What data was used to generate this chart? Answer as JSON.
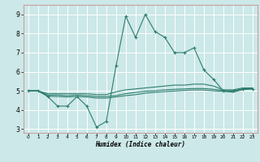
{
  "title": "",
  "xlabel": "Humidex (Indice chaleur)",
  "bg_color": "#cce8e8",
  "plot_bg_color": "#cce8e8",
  "grid_color": "#ffffff",
  "line_color": "#2d7d6e",
  "border_color": "#c8a0a0",
  "xlim": [
    -0.5,
    23.5
  ],
  "ylim": [
    2.8,
    9.5
  ],
  "xticks": [
    0,
    1,
    2,
    3,
    4,
    5,
    6,
    7,
    8,
    9,
    10,
    11,
    12,
    13,
    14,
    15,
    16,
    17,
    18,
    19,
    20,
    21,
    22,
    23
  ],
  "yticks": [
    3,
    4,
    5,
    6,
    7,
    8,
    9
  ],
  "series": [
    {
      "x": [
        0,
        1,
        2,
        3,
        4,
        5,
        6,
        7,
        8,
        9,
        10,
        11,
        12,
        13,
        14,
        15,
        16,
        17,
        18,
        19,
        20,
        21,
        22,
        23
      ],
      "y": [
        5.0,
        5.0,
        4.7,
        4.2,
        4.2,
        4.7,
        4.2,
        3.1,
        3.4,
        6.3,
        8.9,
        7.8,
        9.0,
        8.1,
        7.8,
        7.0,
        7.0,
        7.25,
        6.1,
        5.6,
        5.0,
        5.0,
        5.1,
        5.1
      ],
      "marker": true
    },
    {
      "x": [
        0,
        1,
        2,
        3,
        4,
        5,
        6,
        7,
        8,
        9,
        10,
        11,
        12,
        13,
        14,
        15,
        16,
        17,
        18,
        19,
        20,
        21,
        22,
        23
      ],
      "y": [
        5.0,
        5.0,
        4.85,
        4.85,
        4.85,
        4.85,
        4.85,
        4.8,
        4.8,
        4.95,
        5.05,
        5.1,
        5.15,
        5.2,
        5.25,
        5.3,
        5.3,
        5.35,
        5.35,
        5.25,
        5.05,
        5.05,
        5.15,
        5.15
      ],
      "marker": false
    },
    {
      "x": [
        0,
        1,
        2,
        3,
        4,
        5,
        6,
        7,
        8,
        9,
        10,
        11,
        12,
        13,
        14,
        15,
        16,
        17,
        18,
        19,
        20,
        21,
        22,
        23
      ],
      "y": [
        5.0,
        5.0,
        4.78,
        4.78,
        4.75,
        4.78,
        4.75,
        4.7,
        4.7,
        4.75,
        4.85,
        4.92,
        4.98,
        5.0,
        5.05,
        5.08,
        5.1,
        5.12,
        5.12,
        5.08,
        5.02,
        4.98,
        5.1,
        5.12
      ],
      "marker": false
    },
    {
      "x": [
        0,
        1,
        2,
        3,
        4,
        5,
        6,
        7,
        8,
        9,
        10,
        11,
        12,
        13,
        14,
        15,
        16,
        17,
        18,
        19,
        20,
        21,
        22,
        23
      ],
      "y": [
        5.0,
        5.0,
        4.72,
        4.7,
        4.68,
        4.7,
        4.68,
        4.62,
        4.62,
        4.68,
        4.75,
        4.8,
        4.88,
        4.92,
        4.96,
        4.99,
        5.02,
        5.04,
        5.04,
        5.0,
        4.97,
        4.93,
        5.06,
        5.1
      ],
      "marker": false
    }
  ]
}
